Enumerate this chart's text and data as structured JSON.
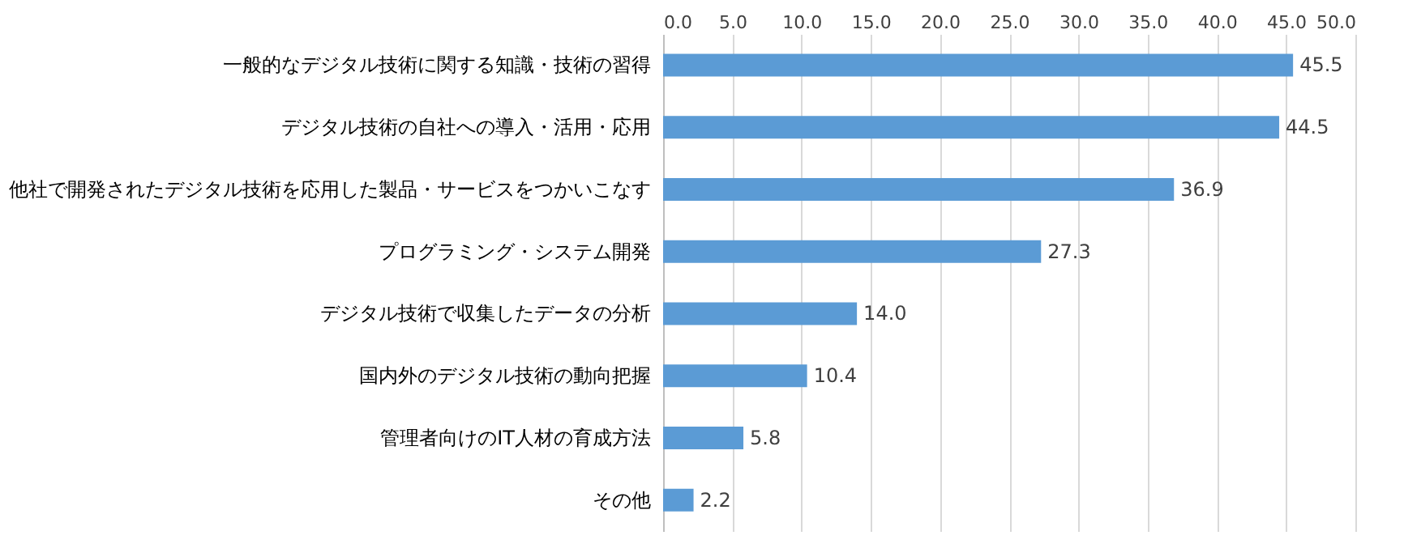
{
  "chart_data": {
    "type": "bar",
    "orientation": "horizontal",
    "categories": [
      "一般的なデジタル技術に関する知識・技術の習得",
      "デジタル技術の自社への導入・活用・応用",
      "他社で開発されたデジタル技術を応用した製品・サービスをつかいこなす",
      "プログラミング・システム開発",
      "デジタル技術で収集したデータの分析",
      "国内外のデジタル技術の動向把握",
      "管理者向けのIT人材の育成方法",
      "その他"
    ],
    "values": [
      45.5,
      44.5,
      36.9,
      27.3,
      14.0,
      10.4,
      5.8,
      2.2
    ],
    "value_labels": [
      "45.5",
      "44.5",
      "36.9",
      "27.3",
      "14.0",
      "10.4",
      "5.8",
      "2.2"
    ],
    "color": "#5b9bd5",
    "xlim": [
      0,
      50
    ],
    "xticks": [
      {
        "value": 0,
        "label": "0.0"
      },
      {
        "value": 5,
        "label": "5.0"
      },
      {
        "value": 10,
        "label": "10.0"
      },
      {
        "value": 15,
        "label": "15.0"
      },
      {
        "value": 20,
        "label": "20.0"
      },
      {
        "value": 25,
        "label": "25.0"
      },
      {
        "value": 30,
        "label": "30.0"
      },
      {
        "value": 35,
        "label": "35.0"
      },
      {
        "value": 40,
        "label": "40.0"
      },
      {
        "value": 45,
        "label": "45.0"
      },
      {
        "value": 50,
        "label": "50.0"
      }
    ],
    "grid": "x"
  }
}
